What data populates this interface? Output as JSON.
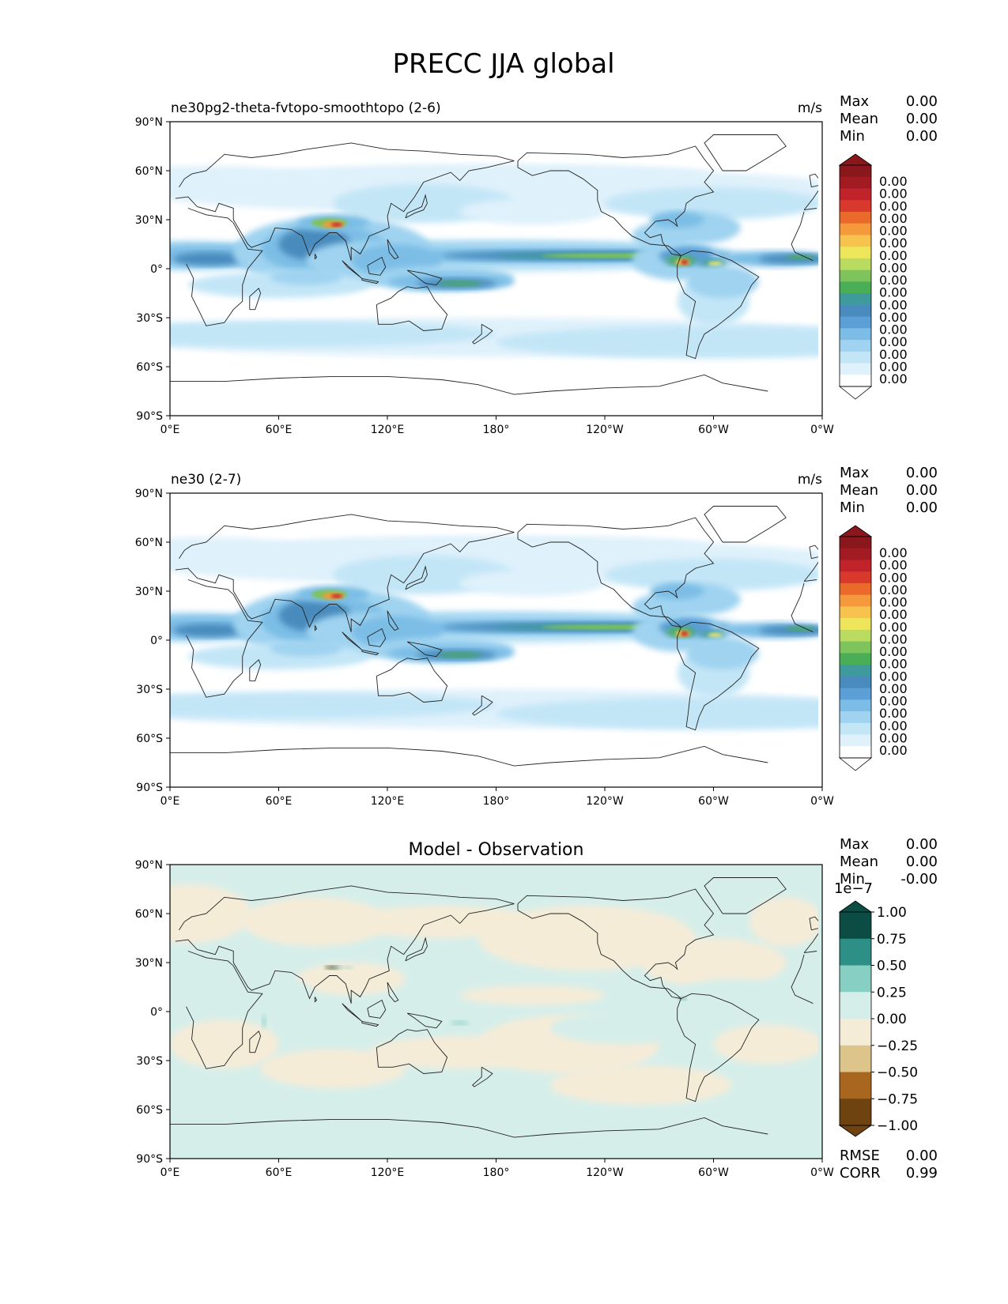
{
  "title": "PRECC JJA global",
  "x_ticks": [
    "0°E",
    "60°E",
    "120°E",
    "180°",
    "120°W",
    "60°W",
    "0°W"
  ],
  "y_ticks": [
    "90°N",
    "60°N",
    "30°N",
    "0°",
    "30°S",
    "60°S",
    "90°S"
  ],
  "colors": {
    "ocean_white": "#ffffff",
    "coast": "#222222",
    "prect_levels": [
      "#ffffff",
      "#dff1fb",
      "#c3e6f7",
      "#9fd3f0",
      "#7bbde6",
      "#5b9fd6",
      "#4a8bbd",
      "#3f9a9b",
      "#4aae57",
      "#7fc35c",
      "#b9db5f",
      "#eee65a",
      "#f8c24e",
      "#f59a3c",
      "#ea6a2c",
      "#d9392c",
      "#c0232a",
      "#a21b23",
      "#8a171c"
    ],
    "diff_levels": [
      "#6e4310",
      "#a8661f",
      "#dcc48a",
      "#f5ecd8",
      "#d6eeea",
      "#86cfc2",
      "#2e8f87",
      "#0b4d45"
    ]
  },
  "panels": [
    {
      "left_title": "ne30pg2-theta-fvtopo-smoothtopo (2-6)",
      "center_title": "",
      "units": "m/s",
      "stats": [
        {
          "label": "Max",
          "value": "0.00"
        },
        {
          "label": "Mean",
          "value": "0.00"
        },
        {
          "label": "Min",
          "value": "0.00"
        }
      ],
      "colorbar_labels": [
        "0.00",
        "0.00",
        "0.00",
        "0.00",
        "0.00",
        "0.00",
        "0.00",
        "0.00",
        "0.00",
        "0.00",
        "0.00",
        "0.00",
        "0.00",
        "0.00",
        "0.00",
        "0.00",
        "0.00"
      ],
      "colorbar_kind": "prect"
    },
    {
      "left_title": "ne30 (2-7)",
      "center_title": "",
      "units": "m/s",
      "stats": [
        {
          "label": "Max",
          "value": "0.00"
        },
        {
          "label": "Mean",
          "value": "0.00"
        },
        {
          "label": "Min",
          "value": "0.00"
        }
      ],
      "colorbar_labels": [
        "0.00",
        "0.00",
        "0.00",
        "0.00",
        "0.00",
        "0.00",
        "0.00",
        "0.00",
        "0.00",
        "0.00",
        "0.00",
        "0.00",
        "0.00",
        "0.00",
        "0.00",
        "0.00",
        "0.00"
      ],
      "colorbar_kind": "prect"
    },
    {
      "left_title": "",
      "center_title": "Model - Observation",
      "units": "",
      "stats": [
        {
          "label": "Max",
          "value": "0.00"
        },
        {
          "label": "Mean",
          "value": "0.00"
        },
        {
          "label": "Min",
          "value": "-0.00"
        }
      ],
      "colorbar_offset": "1e−7",
      "colorbar_labels": [
        "1.00",
        "0.75",
        "0.50",
        "0.25",
        "0.00",
        "−0.25",
        "−0.50",
        "−0.75",
        "−1.00"
      ],
      "colorbar_kind": "diff",
      "bottom_stats": [
        {
          "label": "RMSE",
          "value": "0.00"
        },
        {
          "label": "CORR",
          "value": "0.99"
        }
      ]
    }
  ],
  "chart_data": [
    {
      "type": "heatmap",
      "title": "ne30pg2-theta-fvtopo-smoothtopo (2-6)",
      "variable": "PRECC",
      "season": "JJA",
      "units": "m/s",
      "x_range": [
        0,
        360
      ],
      "y_range": [
        -90,
        90
      ],
      "stats": {
        "max": 0.0,
        "mean": 0.0,
        "min": 0.0
      }
    },
    {
      "type": "heatmap",
      "title": "ne30 (2-7)",
      "variable": "PRECC",
      "season": "JJA",
      "units": "m/s",
      "x_range": [
        0,
        360
      ],
      "y_range": [
        -90,
        90
      ],
      "stats": {
        "max": 0.0,
        "mean": 0.0,
        "min": 0.0
      }
    },
    {
      "type": "heatmap",
      "title": "Model - Observation",
      "x_range": [
        0,
        360
      ],
      "y_range": [
        -90,
        90
      ],
      "colorbar_range": [
        -1.0,
        1.0
      ],
      "colorbar_scale": "1e-7",
      "stats": {
        "max": 0.0,
        "mean": 0.0,
        "min": -0.0,
        "rmse": 0.0,
        "corr": 0.99
      }
    }
  ]
}
